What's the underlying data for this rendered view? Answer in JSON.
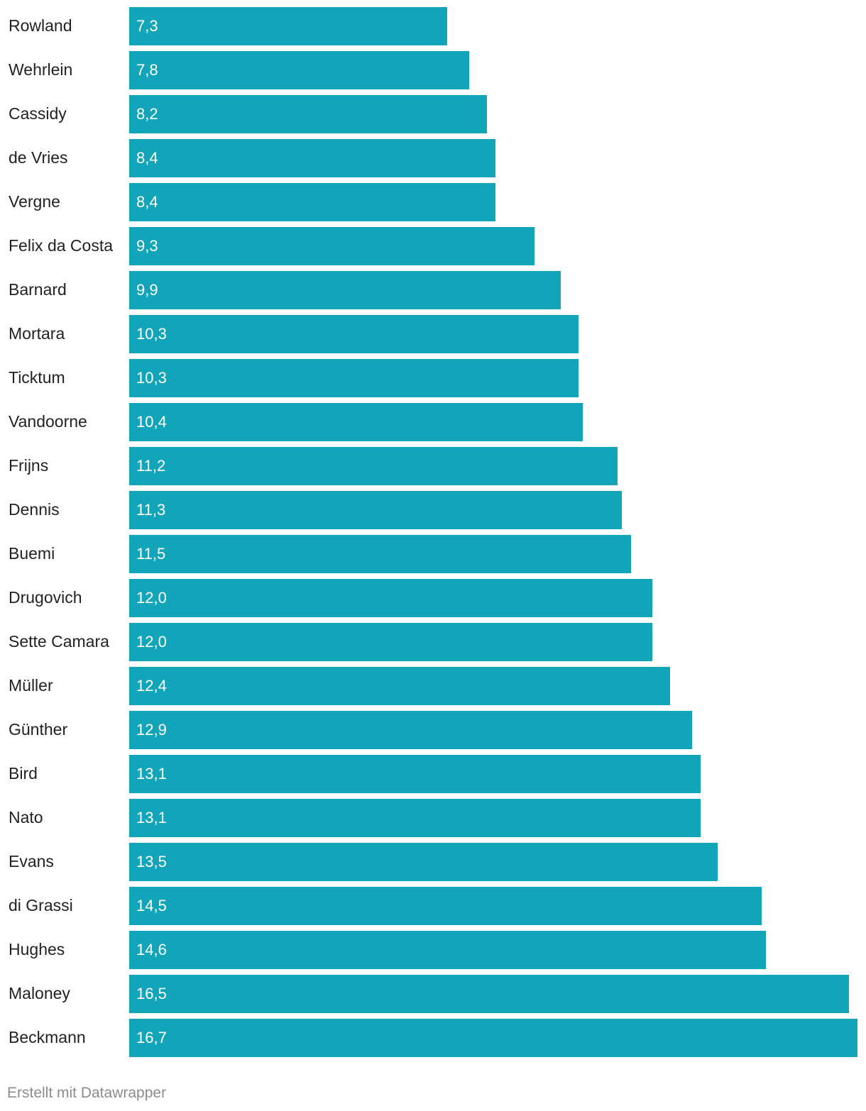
{
  "chart_data": {
    "type": "bar",
    "orientation": "horizontal",
    "categories": [
      "Rowland",
      "Wehrlein",
      "Cassidy",
      "de Vries",
      "Vergne",
      "Felix da Costa",
      "Barnard",
      "Mortara",
      "Ticktum",
      "Vandoorne",
      "Frijns",
      "Dennis",
      "Buemi",
      "Drugovich",
      "Sette Camara",
      "Müller",
      "Günther",
      "Bird",
      "Nato",
      "Evans",
      "di Grassi",
      "Hughes",
      "Maloney",
      "Beckmann"
    ],
    "values": [
      7.3,
      7.8,
      8.2,
      8.4,
      8.4,
      9.3,
      9.9,
      10.3,
      10.3,
      10.4,
      11.2,
      11.3,
      11.5,
      12.0,
      12.0,
      12.4,
      12.9,
      13.1,
      13.1,
      13.5,
      14.5,
      14.6,
      16.5,
      16.7
    ],
    "value_labels": [
      "7,3",
      "7,8",
      "8,2",
      "8,4",
      "8,4",
      "9,3",
      "9,9",
      "10,3",
      "10,3",
      "10,4",
      "11,2",
      "11,3",
      "11,5",
      "12,0",
      "12,0",
      "12,4",
      "12,9",
      "13,1",
      "13,1",
      "13,5",
      "14,5",
      "14,6",
      "16,5",
      "16,7"
    ],
    "xlim": [
      0,
      16.7
    ],
    "grid": false,
    "colors": {
      "bar": "#12a5b9"
    }
  },
  "footer": {
    "credit": "Erstellt mit Datawrapper"
  }
}
